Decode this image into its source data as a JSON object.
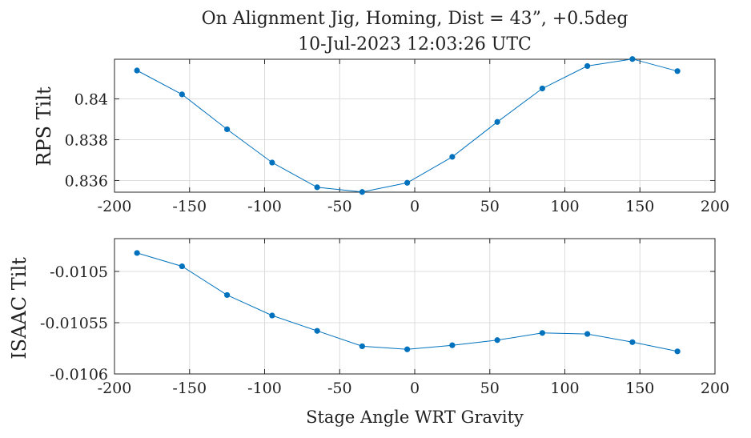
{
  "figure": {
    "title_line1": "On Alignment Jig, Homing, Dist = 43”, +0.5deg",
    "title_line2": "10-Jul-2023 12:03:26 UTC",
    "line_color": "#0072BD",
    "grid_color": "#dcdcdc",
    "axis_color": "#262626"
  },
  "chart_data": [
    {
      "type": "line",
      "ylabel": "RPS Tilt",
      "xlim": [
        -200,
        200
      ],
      "ylim": [
        0.83543,
        0.84194
      ],
      "x_ticks": [
        -200,
        -150,
        -100,
        -50,
        0,
        50,
        100,
        150,
        200
      ],
      "x_tick_labels": [
        "-200",
        "-150",
        "-100",
        "-50",
        "0",
        "50",
        "100",
        "150",
        "200"
      ],
      "y_ticks": [
        0.836,
        0.838,
        0.84
      ],
      "y_tick_labels": [
        "0.836",
        "0.838",
        "0.84"
      ],
      "grid": true,
      "series": [
        {
          "x": [
            -185,
            -155,
            -125,
            -95,
            -65,
            -35,
            -5,
            25,
            55,
            85,
            115,
            145,
            175
          ],
          "y": [
            0.84139,
            0.84022,
            0.83851,
            0.83688,
            0.83567,
            0.83544,
            0.83589,
            0.83716,
            0.83887,
            0.84051,
            0.84161,
            0.84195,
            0.84136
          ]
        }
      ]
    },
    {
      "type": "line",
      "ylabel": "ISAAC Tilt",
      "xlabel": "Stage Angle WRT Gravity",
      "xlim": [
        -200,
        200
      ],
      "ylim": [
        -0.0106,
        -0.010468
      ],
      "x_ticks": [
        -200,
        -150,
        -100,
        -50,
        0,
        50,
        100,
        150,
        200
      ],
      "x_tick_labels": [
        "-200",
        "-150",
        "-100",
        "-50",
        "0",
        "50",
        "100",
        "150",
        "200"
      ],
      "y_ticks": [
        -0.0106,
        -0.01055,
        -0.0105
      ],
      "y_tick_labels": [
        "-0.0106",
        "-0.01055",
        "-0.0105"
      ],
      "grid": true,
      "series": [
        {
          "x": [
            -185,
            -155,
            -125,
            -95,
            -65,
            -35,
            -5,
            25,
            55,
            85,
            115,
            145,
            175
          ],
          "y": [
            -0.010482,
            -0.010495,
            -0.010523,
            -0.010543,
            -0.010558,
            -0.010573,
            -0.010576,
            -0.010572,
            -0.010567,
            -0.01056,
            -0.010561,
            -0.010569,
            -0.010578
          ]
        }
      ]
    }
  ]
}
